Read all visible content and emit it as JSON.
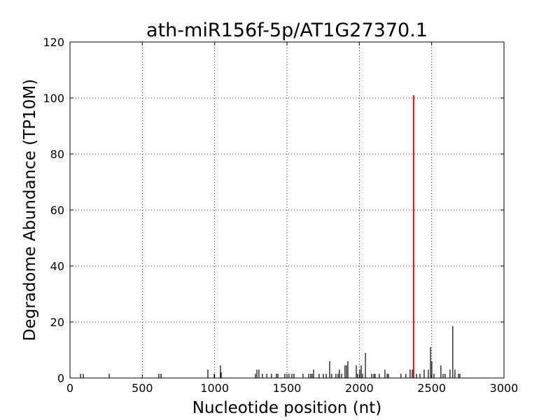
{
  "chart_data": {
    "type": "stem",
    "title": "ath-miR156f-5p/AT1G27370.1",
    "x_label": "Nucleotide position (nt)",
    "y_label": "Degradome Abundance (TP10M)",
    "xlim": [
      0,
      3000
    ],
    "ylim": [
      0,
      120
    ],
    "xticks": [
      0,
      500,
      1000,
      1500,
      2000,
      2500,
      3000
    ],
    "yticks": [
      0,
      20,
      40,
      60,
      80,
      100,
      120
    ],
    "grid": true,
    "series": [
      {
        "color": "#000000",
        "x": [
          73,
          92,
          271,
          614,
          629,
          953,
          997,
          1040,
          1045,
          1282,
          1292,
          1306,
          1330,
          1360,
          1393,
          1427,
          1437,
          1485,
          1500,
          1514,
          1534,
          1548,
          1611,
          1650,
          1664,
          1674,
          1684,
          1722,
          1751,
          1771,
          1795,
          1809,
          1838,
          1853,
          1862,
          1877,
          1901,
          1911,
          1921,
          1979,
          1988,
          2003,
          2013,
          2022,
          2042,
          2085,
          2100,
          2109,
          2138,
          2177,
          2192,
          2201,
          2288,
          2322,
          2351,
          2366,
          2395,
          2419,
          2448,
          2477,
          2492,
          2501,
          2516,
          2564,
          2579,
          2593,
          2627,
          2646,
          2661,
          2685,
          2695
        ],
        "values": [
          1.5,
          1.5,
          1.5,
          1.5,
          1.5,
          3,
          1.5,
          4.5,
          2,
          1.5,
          3,
          3,
          1.5,
          1.5,
          1.5,
          1.5,
          1.5,
          1.5,
          1.5,
          1.5,
          1.5,
          1.5,
          1.5,
          1.5,
          1.5,
          1.5,
          3,
          1.5,
          1.5,
          1.5,
          6,
          1.5,
          1.5,
          1.5,
          3,
          1.5,
          4.5,
          4.5,
          6,
          4.5,
          1.5,
          3,
          4.5,
          1.5,
          9,
          1.5,
          1.5,
          1.5,
          1.5,
          3,
          1.5,
          1.5,
          1.5,
          1.5,
          3,
          3,
          1.5,
          1.5,
          3,
          3,
          11,
          6,
          1.5,
          4.5,
          1.5,
          1.5,
          3,
          18.5,
          3,
          1.5,
          1.5
        ]
      },
      {
        "color": "#ff0000",
        "x": [
          2375
        ],
        "values": [
          101
        ]
      }
    ]
  }
}
